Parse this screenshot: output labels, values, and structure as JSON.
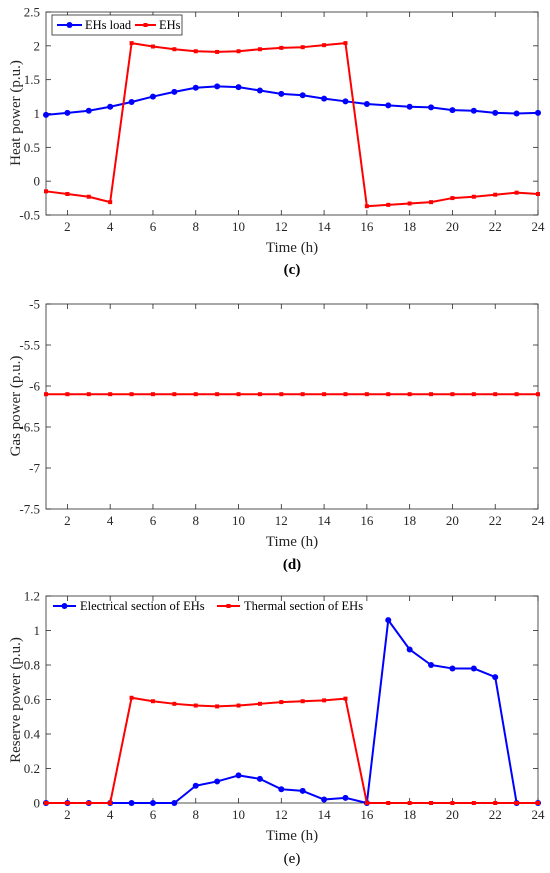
{
  "colors": {
    "blue": "#0000ff",
    "red": "#ff0000",
    "axis": "#262626"
  },
  "chart_data": [
    {
      "type": "line",
      "caption": "(c)",
      "xlabel": "Time (h)",
      "ylabel": "Heat power (p.u.)",
      "xlim": [
        1,
        24
      ],
      "ylim": [
        -0.5,
        2.5
      ],
      "xticks": [
        2,
        4,
        6,
        8,
        10,
        12,
        14,
        16,
        18,
        20,
        22,
        24
      ],
      "yticks": [
        -0.5,
        0,
        0.5,
        1,
        1.5,
        2,
        2.5
      ],
      "ytick_labels": [
        "-0.5",
        "0",
        "0.5",
        "1",
        "1.5",
        "2",
        "2.5"
      ],
      "legend": "top-left",
      "x": [
        1,
        2,
        3,
        4,
        5,
        6,
        7,
        8,
        9,
        10,
        11,
        12,
        13,
        14,
        15,
        16,
        17,
        18,
        19,
        20,
        21,
        22,
        23,
        24
      ],
      "series": [
        {
          "name": "EHs load",
          "color": "blue",
          "marker": "dot",
          "values": [
            0.98,
            1.01,
            1.04,
            1.1,
            1.17,
            1.25,
            1.32,
            1.38,
            1.4,
            1.39,
            1.34,
            1.29,
            1.27,
            1.22,
            1.18,
            1.14,
            1.12,
            1.1,
            1.09,
            1.05,
            1.04,
            1.01,
            1.0,
            1.01
          ]
        },
        {
          "name": "EHs",
          "color": "red",
          "marker": "star",
          "values": [
            -0.15,
            -0.19,
            -0.23,
            -0.31,
            2.04,
            1.99,
            1.95,
            1.92,
            1.91,
            1.92,
            1.95,
            1.97,
            1.98,
            2.01,
            2.04,
            -0.37,
            -0.35,
            -0.33,
            -0.31,
            -0.25,
            -0.23,
            -0.2,
            -0.17,
            -0.19
          ]
        }
      ]
    },
    {
      "type": "line",
      "caption": "(d)",
      "xlabel": "Time (h)",
      "ylabel": "Gas power (p.u.)",
      "xlim": [
        1,
        24
      ],
      "ylim": [
        -7.5,
        -5
      ],
      "xticks": [
        2,
        4,
        6,
        8,
        10,
        12,
        14,
        16,
        18,
        20,
        22,
        24
      ],
      "yticks": [
        -7.5,
        -7,
        -6.5,
        -6,
        -5.5,
        -5
      ],
      "ytick_labels": [
        "-7.5",
        "-7",
        "-6.5",
        "-6",
        "-5.5",
        "-5"
      ],
      "legend": "none",
      "x": [
        1,
        2,
        3,
        4,
        5,
        6,
        7,
        8,
        9,
        10,
        11,
        12,
        13,
        14,
        15,
        16,
        17,
        18,
        19,
        20,
        21,
        22,
        23,
        24
      ],
      "series": [
        {
          "name": "",
          "color": "red",
          "marker": "star",
          "values": [
            -6.1,
            -6.1,
            -6.1,
            -6.1,
            -6.1,
            -6.1,
            -6.1,
            -6.1,
            -6.1,
            -6.1,
            -6.1,
            -6.1,
            -6.1,
            -6.1,
            -6.1,
            -6.1,
            -6.1,
            -6.1,
            -6.1,
            -6.1,
            -6.1,
            -6.1,
            -6.1,
            -6.1
          ]
        }
      ]
    },
    {
      "type": "line",
      "caption": "(e)",
      "xlabel": "Time (h)",
      "ylabel": "Reserve power (p.u.)",
      "xlim": [
        1,
        24
      ],
      "ylim": [
        0,
        1.2
      ],
      "xticks": [
        2,
        4,
        6,
        8,
        10,
        12,
        14,
        16,
        18,
        20,
        22,
        24
      ],
      "yticks": [
        0,
        0.2,
        0.4,
        0.6,
        0.8,
        1,
        1.2
      ],
      "ytick_labels": [
        "0",
        "0.2",
        "0.4",
        "0.6",
        "0.8",
        "1",
        "1.2"
      ],
      "legend": "top",
      "x": [
        1,
        2,
        3,
        4,
        5,
        6,
        7,
        8,
        9,
        10,
        11,
        12,
        13,
        14,
        15,
        16,
        17,
        18,
        19,
        20,
        21,
        22,
        23,
        24
      ],
      "series": [
        {
          "name": "Electrical section of EHs",
          "color": "blue",
          "marker": "dot",
          "values": [
            0,
            0,
            0,
            0,
            0,
            0,
            0,
            0.1,
            0.125,
            0.16,
            0.14,
            0.08,
            0.07,
            0.02,
            0.03,
            0,
            1.06,
            0.89,
            0.8,
            0.78,
            0.78,
            0.73,
            0,
            0
          ]
        },
        {
          "name": "Thermal  section of EHs",
          "color": "red",
          "marker": "star",
          "values": [
            0,
            0,
            0,
            0,
            0.61,
            0.59,
            0.575,
            0.565,
            0.56,
            0.565,
            0.575,
            0.585,
            0.59,
            0.595,
            0.605,
            0,
            0,
            0,
            0,
            0,
            0,
            0,
            0,
            0
          ]
        }
      ]
    }
  ]
}
